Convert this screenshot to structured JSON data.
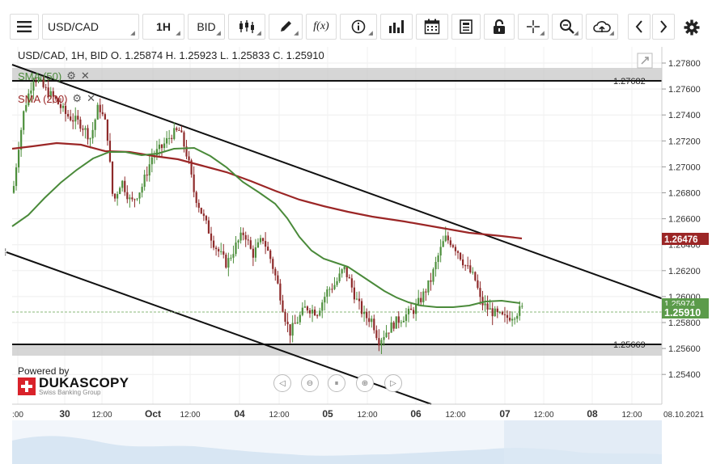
{
  "toolbar": {
    "symbol": "USD/CAD",
    "timeframe": "1H",
    "price_type": "BID",
    "fx_label": "f(x)"
  },
  "chart": {
    "ohlc_text": "USD/CAD, 1H, BID   O. 1.25874 H. 1.25923 L. 1.25833 C. 1.25910",
    "indicators": [
      {
        "label": "SMA (50)",
        "color": "#4a8a3a"
      },
      {
        "label": "SMA (200)",
        "color": "#9b2626"
      }
    ],
    "price_axis": [
      "1.27800",
      "1.27600",
      "1.27400",
      "1.27200",
      "1.27000",
      "1.26800",
      "1.26600",
      "1.26400",
      "1.26200",
      "1.26000",
      "1.25800",
      "1.25600",
      "1.25400"
    ],
    "hline_labels": {
      "upper": "1.27682",
      "lower": "1.25669"
    },
    "sma200_price_label": "1.26476",
    "current_price_label": "1.25910",
    "sma50_price_label": "1.25974",
    "time_axis": [
      ":00",
      "30",
      "12:00",
      "Oct",
      "12:00",
      "04",
      "12:00",
      "05",
      "12:00",
      "06",
      "12:00",
      "07",
      "12:00",
      "08",
      "12:00",
      "08.10.2021"
    ]
  },
  "branding": {
    "powered_by": "Powered by",
    "brand_name": "DUKASCOPY",
    "brand_tagline": "Swiss Banking Group"
  },
  "colors": {
    "bull_candle": "#4d8f3c",
    "bear_candle": "#8e2a2a",
    "sma50": "#4a8a3a",
    "sma200": "#9b2626",
    "current_price": "#5b9b4a"
  }
}
